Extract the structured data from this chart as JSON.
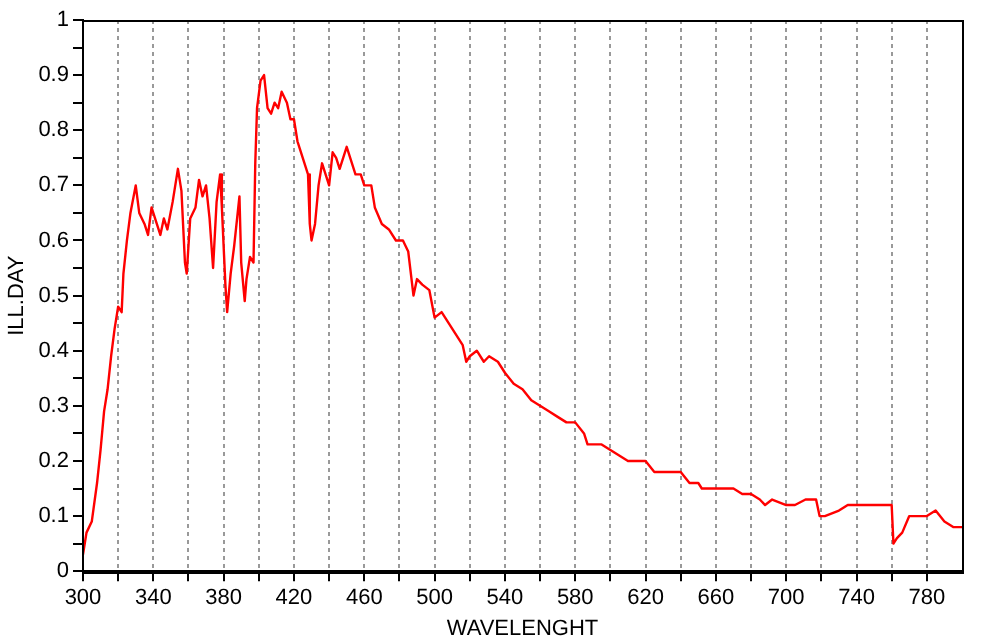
{
  "chart_data": {
    "type": "line",
    "xlabel": "WAVELENGHT",
    "ylabel": "ILL.DAY",
    "xlim": [
      300,
      800
    ],
    "ylim": [
      0,
      1
    ],
    "xticks": [
      300,
      {
        "value": 320,
        "label": null
      },
      340,
      {
        "value": 360,
        "label": null
      },
      380,
      {
        "value": 400,
        "label": null
      },
      420,
      {
        "value": 440,
        "label": null
      },
      460,
      {
        "value": 480,
        "label": null
      },
      500,
      {
        "value": 520,
        "label": null
      },
      540,
      {
        "value": 560,
        "label": null
      },
      580,
      {
        "value": 600,
        "label": null
      },
      620,
      {
        "value": 640,
        "label": null
      },
      660,
      {
        "value": 680,
        "label": null
      },
      700,
      {
        "value": 720,
        "label": null
      },
      740,
      {
        "value": 760,
        "label": null
      },
      780
    ],
    "yticks": [
      0,
      {
        "value": 0.05,
        "label": null
      },
      0.1,
      {
        "value": 0.15,
        "label": null
      },
      0.2,
      {
        "value": 0.25,
        "label": null
      },
      0.3,
      {
        "value": 0.35,
        "label": null
      },
      0.4,
      {
        "value": 0.45,
        "label": null
      },
      0.5,
      {
        "value": 0.55,
        "label": null
      },
      0.6,
      {
        "value": 0.65,
        "label": null
      },
      0.7,
      {
        "value": 0.75,
        "label": null
      },
      0.8,
      {
        "value": 0.85,
        "label": null
      },
      0.9,
      {
        "value": 0.95,
        "label": null
      },
      1
    ],
    "grid": "x",
    "legend": false,
    "marker": "none",
    "line_style": "solid",
    "series": [
      {
        "color": "#ff0000",
        "x": [
          300,
          302,
          305,
          308,
          310,
          312,
          314,
          316,
          318,
          320,
          322,
          323,
          325,
          327,
          330,
          332,
          335,
          337,
          339,
          342,
          344,
          346,
          348,
          351,
          354,
          356,
          358,
          359,
          361,
          364,
          366,
          368,
          370,
          372,
          374,
          376,
          378,
          379,
          381,
          382,
          384,
          386,
          388,
          389,
          390,
          392,
          393,
          395,
          397,
          398,
          399,
          401,
          403,
          405,
          407,
          409,
          411,
          413,
          416,
          418,
          420,
          422,
          425,
          428,
          429,
          430,
          432,
          434,
          436,
          438,
          440,
          442,
          444,
          446,
          448,
          450,
          452,
          455,
          458,
          460,
          464,
          466,
          470,
          474,
          478,
          482,
          485,
          488,
          490,
          493,
          497,
          500,
          504,
          508,
          512,
          516,
          518,
          520,
          524,
          528,
          531,
          536,
          540,
          545,
          550,
          555,
          560,
          565,
          570,
          575,
          580,
          585,
          587,
          595,
          600,
          605,
          610,
          620,
          625,
          630,
          640,
          645,
          650,
          652,
          655,
          670,
          675,
          680,
          685,
          688,
          692,
          700,
          705,
          711,
          717,
          719,
          722,
          730,
          735,
          740,
          745,
          750,
          755,
          760,
          761,
          763,
          766,
          770,
          775,
          780,
          785,
          790,
          795,
          800
        ],
        "values": [
          0.03,
          0.07,
          0.09,
          0.16,
          0.22,
          0.29,
          0.33,
          0.39,
          0.44,
          0.48,
          0.47,
          0.54,
          0.6,
          0.65,
          0.7,
          0.65,
          0.63,
          0.61,
          0.66,
          0.63,
          0.61,
          0.64,
          0.62,
          0.67,
          0.73,
          0.69,
          0.56,
          0.54,
          0.64,
          0.66,
          0.71,
          0.68,
          0.7,
          0.64,
          0.55,
          0.67,
          0.72,
          0.66,
          0.52,
          0.47,
          0.54,
          0.59,
          0.65,
          0.68,
          0.56,
          0.49,
          0.53,
          0.57,
          0.56,
          0.74,
          0.84,
          0.89,
          0.9,
          0.84,
          0.83,
          0.85,
          0.84,
          0.87,
          0.85,
          0.82,
          0.82,
          0.78,
          0.75,
          0.72,
          0.63,
          0.6,
          0.63,
          0.7,
          0.74,
          0.72,
          0.7,
          0.76,
          0.75,
          0.73,
          0.75,
          0.77,
          0.75,
          0.72,
          0.72,
          0.7,
          0.7,
          0.66,
          0.63,
          0.62,
          0.6,
          0.6,
          0.58,
          0.5,
          0.53,
          0.52,
          0.51,
          0.46,
          0.47,
          0.45,
          0.43,
          0.41,
          0.38,
          0.39,
          0.4,
          0.38,
          0.39,
          0.38,
          0.36,
          0.34,
          0.33,
          0.31,
          0.3,
          0.29,
          0.28,
          0.27,
          0.27,
          0.25,
          0.23,
          0.23,
          0.22,
          0.21,
          0.2,
          0.2,
          0.18,
          0.18,
          0.18,
          0.16,
          0.16,
          0.15,
          0.15,
          0.15,
          0.14,
          0.14,
          0.13,
          0.12,
          0.13,
          0.12,
          0.12,
          0.13,
          0.13,
          0.1,
          0.1,
          0.11,
          0.12,
          0.12,
          0.12,
          0.12,
          0.12,
          0.12,
          0.05,
          0.06,
          0.07,
          0.1,
          0.1,
          0.1,
          0.11,
          0.09,
          0.08,
          0.08
        ]
      }
    ]
  }
}
